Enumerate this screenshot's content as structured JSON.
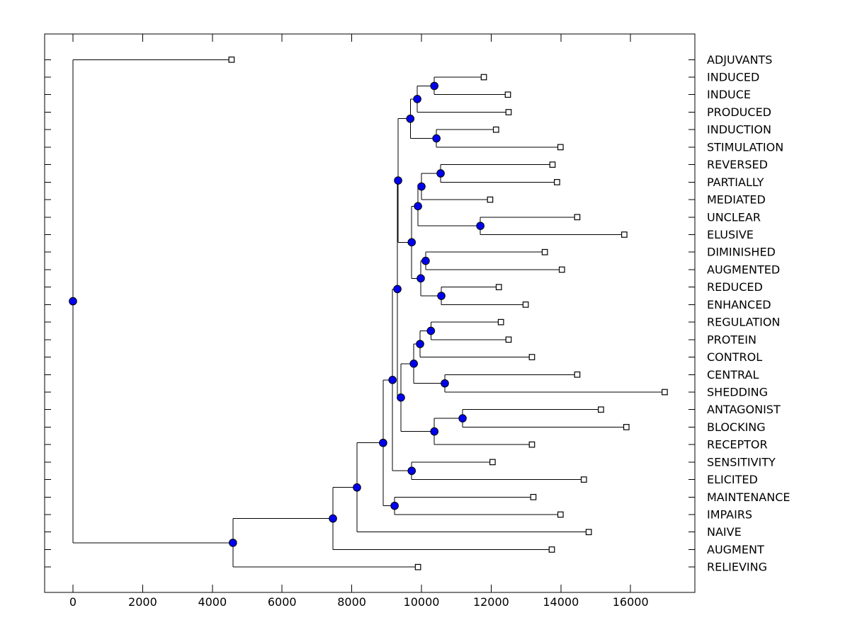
{
  "figure": {
    "background": "#ffffff",
    "title": ""
  },
  "chart_data": {
    "type": "dendrogram",
    "subtype": "phylogenetic-tree",
    "orientation": "left-to-right",
    "title": "",
    "xlabel": "",
    "ylabel": "",
    "grid": false,
    "x_axis_ticks": [
      0,
      2000,
      4000,
      6000,
      8000,
      10000,
      12000,
      14000,
      16000
    ],
    "leaf_order_top_to_bottom": [
      "ADJUVANTS",
      "INDUCED",
      "INDUCE",
      "PRODUCED",
      "INDUCTION",
      "STIMULATION",
      "REVERSED",
      "PARTIALLY",
      "MEDIATED",
      "UNCLEAR",
      "ELUSIVE",
      "DIMINISHED",
      "AUGMENTED",
      "REDUCED",
      "ENHANCED",
      "REGULATION",
      "PROTEIN",
      "CONTROL",
      "CENTRAL",
      "SHEDDING",
      "ANTAGONIST",
      "BLOCKING",
      "RECEPTOR",
      "SENSITIVITY",
      "ELICITED",
      "MAINTENANCE",
      "IMPAIRS",
      "NAIVE",
      "AUGMENT",
      "RELIEVING"
    ],
    "leaves": [
      {
        "label": "ADJUVANTS",
        "distance": 4550
      },
      {
        "label": "INDUCED",
        "distance": 11790
      },
      {
        "label": "INDUCE",
        "distance": 12480
      },
      {
        "label": "PRODUCED",
        "distance": 12500
      },
      {
        "label": "INDUCTION",
        "distance": 12140
      },
      {
        "label": "STIMULATION",
        "distance": 13990
      },
      {
        "label": "REVERSED",
        "distance": 13760
      },
      {
        "label": "PARTIALLY",
        "distance": 13890
      },
      {
        "label": "MEDIATED",
        "distance": 11970
      },
      {
        "label": "UNCLEAR",
        "distance": 14470
      },
      {
        "label": "ELUSIVE",
        "distance": 15820
      },
      {
        "label": "DIMINISHED",
        "distance": 13540
      },
      {
        "label": "AUGMENTED",
        "distance": 14030
      },
      {
        "label": "REDUCED",
        "distance": 12220
      },
      {
        "label": "ENHANCED",
        "distance": 12990
      },
      {
        "label": "REGULATION",
        "distance": 12280
      },
      {
        "label": "PROTEIN",
        "distance": 12500
      },
      {
        "label": "CONTROL",
        "distance": 13170
      },
      {
        "label": "CENTRAL",
        "distance": 14470
      },
      {
        "label": "SHEDDING",
        "distance": 16980
      },
      {
        "label": "ANTAGONIST",
        "distance": 15150
      },
      {
        "label": "BLOCKING",
        "distance": 15880
      },
      {
        "label": "RECEPTOR",
        "distance": 13170
      },
      {
        "label": "SENSITIVITY",
        "distance": 12040
      },
      {
        "label": "ELICITED",
        "distance": 14660
      },
      {
        "label": "MAINTENANCE",
        "distance": 13210
      },
      {
        "label": "IMPAIRS",
        "distance": 13990
      },
      {
        "label": "NAIVE",
        "distance": 14800
      },
      {
        "label": "AUGMENT",
        "distance": 13740
      },
      {
        "label": "RELIEVING",
        "distance": 9900
      }
    ],
    "internal_nodes": [
      {
        "id": "n_induced_induce",
        "children": [
          "INDUCED",
          "INDUCE"
        ],
        "distance": 10370
      },
      {
        "id": "n_produced",
        "children": [
          "n_induced_induce",
          "PRODUCED"
        ],
        "distance": 9880
      },
      {
        "id": "n_induction_stim",
        "children": [
          "INDUCTION",
          "STIMULATION"
        ],
        "distance": 10430
      },
      {
        "id": "n_induce_clade",
        "children": [
          "n_produced",
          "n_induction_stim"
        ],
        "distance": 9680
      },
      {
        "id": "n_rev_part",
        "children": [
          "REVERSED",
          "PARTIALLY"
        ],
        "distance": 10550
      },
      {
        "id": "n_mediated",
        "children": [
          "n_rev_part",
          "MEDIATED"
        ],
        "distance": 10000
      },
      {
        "id": "n_unclear_elusive",
        "children": [
          "UNCLEAR",
          "ELUSIVE"
        ],
        "distance": 11690
      },
      {
        "id": "n_med_unclear",
        "children": [
          "n_mediated",
          "n_unclear_elusive"
        ],
        "distance": 9900
      },
      {
        "id": "n_dim_aug",
        "children": [
          "DIMINISHED",
          "AUGMENTED"
        ],
        "distance": 10120
      },
      {
        "id": "n_red_enh",
        "children": [
          "REDUCED",
          "ENHANCED"
        ],
        "distance": 10570
      },
      {
        "id": "n_dim_red",
        "children": [
          "n_dim_aug",
          "n_red_enh"
        ],
        "distance": 9980
      },
      {
        "id": "n_mid_clade",
        "children": [
          "n_med_unclear",
          "n_dim_red"
        ],
        "distance": 9720
      },
      {
        "id": "n_upper_clade",
        "children": [
          "n_induce_clade",
          "n_mid_clade"
        ],
        "distance": 9330
      },
      {
        "id": "n_reg_prot",
        "children": [
          "REGULATION",
          "PROTEIN"
        ],
        "distance": 10270
      },
      {
        "id": "n_control",
        "children": [
          "n_reg_prot",
          "CONTROL"
        ],
        "distance": 9960
      },
      {
        "id": "n_central_shed",
        "children": [
          "CENTRAL",
          "SHEDDING"
        ],
        "distance": 10670
      },
      {
        "id": "n_ctrl_central",
        "children": [
          "n_control",
          "n_central_shed"
        ],
        "distance": 9780
      },
      {
        "id": "n_ant_block",
        "children": [
          "ANTAGONIST",
          "BLOCKING"
        ],
        "distance": 11180
      },
      {
        "id": "n_receptor",
        "children": [
          "n_ant_block",
          "RECEPTOR"
        ],
        "distance": 10370
      },
      {
        "id": "n_lower_mid",
        "children": [
          "n_ctrl_central",
          "n_receptor"
        ],
        "distance": 9410
      },
      {
        "id": "n_big_upper",
        "children": [
          "n_upper_clade",
          "n_lower_mid"
        ],
        "distance": 9310
      },
      {
        "id": "n_sens_elic",
        "children": [
          "SENSITIVITY",
          "ELICITED"
        ],
        "distance": 9720
      },
      {
        "id": "n_big_sens",
        "children": [
          "n_big_upper",
          "n_sens_elic"
        ],
        "distance": 9170
      },
      {
        "id": "n_maint_imp",
        "children": [
          "MAINTENANCE",
          "IMPAIRS"
        ],
        "distance": 9230
      },
      {
        "id": "n_big_maint",
        "children": [
          "n_big_sens",
          "n_maint_imp"
        ],
        "distance": 8900
      },
      {
        "id": "n_naive",
        "children": [
          "n_big_maint",
          "NAIVE"
        ],
        "distance": 8150
      },
      {
        "id": "n_augment",
        "children": [
          "n_naive",
          "AUGMENT"
        ],
        "distance": 7460
      },
      {
        "id": "n_relieving",
        "children": [
          "n_augment",
          "RELIEVING"
        ],
        "distance": 4590
      },
      {
        "id": "root",
        "children": [
          "ADJUVANTS",
          "n_relieving"
        ],
        "distance": 0
      }
    ],
    "legend": null,
    "markers": {
      "leaf": "open-square",
      "internal": "filled-circle"
    }
  },
  "colors": {
    "branch": "#000000",
    "frame": "#000000",
    "node_fill": "#0000f0",
    "node_stroke": "#000000",
    "leaf_marker_fill": "#ffffff",
    "leaf_marker_stroke": "#000000",
    "text": "#000000",
    "background": "#ffffff"
  }
}
